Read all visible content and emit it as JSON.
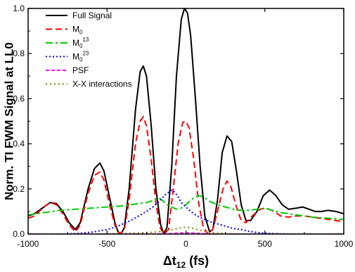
{
  "chart_data": {
    "type": "line",
    "xlabel_main": "Δt",
    "xlabel_sub": "12",
    "xlabel_unit": " (fs)",
    "ylabel": "Norm. TI FWM Signal at LL0",
    "xlim": [
      -1000,
      1000
    ],
    "ylim": [
      0,
      1.0
    ],
    "x_ticks": [
      -1000,
      -500,
      0,
      500,
      1000
    ],
    "x_tick_labels": [
      "-1000",
      "-500",
      "0",
      "500",
      "1000"
    ],
    "y_ticks": [
      0,
      0.2,
      0.4,
      0.6,
      0.8,
      1.0
    ],
    "y_tick_labels": [
      "0.0",
      "0.2",
      "0.4",
      "0.6",
      "0.8",
      "1.0"
    ],
    "legend_position": "top-left",
    "series": [
      {
        "name": "Full Signal",
        "legend": {
          "base": "Full Signal"
        },
        "color": "#000000",
        "dash": "",
        "width": 2,
        "points": [
          [
            -1000,
            0.08
          ],
          [
            -960,
            0.09
          ],
          [
            -900,
            0.12
          ],
          [
            -860,
            0.14
          ],
          [
            -820,
            0.135
          ],
          [
            -780,
            0.1
          ],
          [
            -740,
            0.05
          ],
          [
            -700,
            0.02
          ],
          [
            -670,
            0.05
          ],
          [
            -620,
            0.2
          ],
          [
            -580,
            0.29
          ],
          [
            -545,
            0.315
          ],
          [
            -520,
            0.28
          ],
          [
            -480,
            0.15
          ],
          [
            -450,
            0.05
          ],
          [
            -430,
            0.01
          ],
          [
            -410,
            0.0
          ],
          [
            -390,
            0.03
          ],
          [
            -360,
            0.2
          ],
          [
            -320,
            0.55
          ],
          [
            -290,
            0.72
          ],
          [
            -270,
            0.745
          ],
          [
            -250,
            0.7
          ],
          [
            -220,
            0.48
          ],
          [
            -190,
            0.2
          ],
          [
            -160,
            0.04
          ],
          [
            -140,
            0.0
          ],
          [
            -120,
            0.03
          ],
          [
            -90,
            0.3
          ],
          [
            -60,
            0.7
          ],
          [
            -30,
            0.95
          ],
          [
            -10,
            1.0
          ],
          [
            10,
            0.98
          ],
          [
            30,
            0.88
          ],
          [
            60,
            0.6
          ],
          [
            90,
            0.3
          ],
          [
            120,
            0.08
          ],
          [
            150,
            0.01
          ],
          [
            170,
            0.02
          ],
          [
            200,
            0.15
          ],
          [
            230,
            0.36
          ],
          [
            260,
            0.435
          ],
          [
            290,
            0.41
          ],
          [
            320,
            0.28
          ],
          [
            350,
            0.13
          ],
          [
            380,
            0.06
          ],
          [
            410,
            0.06
          ],
          [
            450,
            0.1
          ],
          [
            490,
            0.17
          ],
          [
            530,
            0.195
          ],
          [
            570,
            0.17
          ],
          [
            610,
            0.13
          ],
          [
            650,
            0.11
          ],
          [
            700,
            0.115
          ],
          [
            740,
            0.12
          ],
          [
            780,
            0.11
          ],
          [
            820,
            0.1
          ],
          [
            860,
            0.1
          ],
          [
            900,
            0.105
          ],
          [
            950,
            0.1
          ],
          [
            1000,
            0.09
          ]
        ]
      },
      {
        "name": "M0",
        "legend": {
          "base": "M",
          "sub": "0"
        },
        "color": "#ff0000",
        "dash": "9,5",
        "width": 2,
        "points": [
          [
            -1000,
            0.07
          ],
          [
            -960,
            0.08
          ],
          [
            -900,
            0.12
          ],
          [
            -860,
            0.14
          ],
          [
            -820,
            0.13
          ],
          [
            -780,
            0.09
          ],
          [
            -740,
            0.04
          ],
          [
            -700,
            0.01
          ],
          [
            -670,
            0.04
          ],
          [
            -620,
            0.18
          ],
          [
            -580,
            0.26
          ],
          [
            -545,
            0.275
          ],
          [
            -520,
            0.24
          ],
          [
            -480,
            0.12
          ],
          [
            -450,
            0.04
          ],
          [
            -420,
            0.0
          ],
          [
            -390,
            0.02
          ],
          [
            -360,
            0.15
          ],
          [
            -320,
            0.4
          ],
          [
            -290,
            0.5
          ],
          [
            -270,
            0.52
          ],
          [
            -250,
            0.48
          ],
          [
            -220,
            0.33
          ],
          [
            -190,
            0.14
          ],
          [
            -165,
            0.03
          ],
          [
            -140,
            0.0
          ],
          [
            -110,
            0.02
          ],
          [
            -80,
            0.2
          ],
          [
            -50,
            0.4
          ],
          [
            -20,
            0.495
          ],
          [
            0,
            0.5
          ],
          [
            20,
            0.47
          ],
          [
            50,
            0.33
          ],
          [
            80,
            0.14
          ],
          [
            110,
            0.03
          ],
          [
            140,
            0.0
          ],
          [
            170,
            0.02
          ],
          [
            200,
            0.1
          ],
          [
            235,
            0.2
          ],
          [
            260,
            0.235
          ],
          [
            285,
            0.21
          ],
          [
            320,
            0.12
          ],
          [
            350,
            0.06
          ],
          [
            380,
            0.05
          ],
          [
            420,
            0.08
          ],
          [
            470,
            0.11
          ],
          [
            510,
            0.115
          ],
          [
            560,
            0.1
          ],
          [
            600,
            0.08
          ],
          [
            650,
            0.075
          ],
          [
            700,
            0.08
          ],
          [
            750,
            0.08
          ],
          [
            800,
            0.075
          ],
          [
            850,
            0.07
          ],
          [
            900,
            0.065
          ],
          [
            950,
            0.06
          ],
          [
            1000,
            0.055
          ]
        ]
      },
      {
        "name": "M0 13",
        "legend": {
          "base": "M",
          "sub": "0",
          "sup": "13"
        },
        "color": "#00cc00",
        "dash": "10,4,3,4",
        "width": 2,
        "points": [
          [
            -1000,
            0.085
          ],
          [
            -900,
            0.095
          ],
          [
            -800,
            0.105
          ],
          [
            -700,
            0.11
          ],
          [
            -600,
            0.115
          ],
          [
            -500,
            0.12
          ],
          [
            -400,
            0.125
          ],
          [
            -300,
            0.135
          ],
          [
            -250,
            0.14
          ],
          [
            -200,
            0.15
          ],
          [
            -170,
            0.16
          ],
          [
            -150,
            0.15
          ],
          [
            -120,
            0.13
          ],
          [
            -90,
            0.12
          ],
          [
            -60,
            0.11
          ],
          [
            -30,
            0.115
          ],
          [
            0,
            0.13
          ],
          [
            30,
            0.15
          ],
          [
            60,
            0.165
          ],
          [
            90,
            0.17
          ],
          [
            120,
            0.16
          ],
          [
            150,
            0.145
          ],
          [
            200,
            0.13
          ],
          [
            250,
            0.12
          ],
          [
            300,
            0.11
          ],
          [
            350,
            0.105
          ],
          [
            400,
            0.105
          ],
          [
            450,
            0.11
          ],
          [
            500,
            0.115
          ],
          [
            550,
            0.105
          ],
          [
            600,
            0.095
          ],
          [
            700,
            0.085
          ],
          [
            800,
            0.075
          ],
          [
            900,
            0.07
          ],
          [
            1000,
            0.065
          ]
        ]
      },
      {
        "name": "M0 23",
        "legend": {
          "base": "M",
          "sub": "0",
          "sup": "23"
        },
        "color": "#0000ff",
        "dash": "2,3",
        "width": 2,
        "points": [
          [
            -1000,
            0.0
          ],
          [
            -900,
            0.0
          ],
          [
            -800,
            0.0
          ],
          [
            -700,
            0.002
          ],
          [
            -600,
            0.008
          ],
          [
            -500,
            0.02
          ],
          [
            -450,
            0.03
          ],
          [
            -400,
            0.045
          ],
          [
            -350,
            0.06
          ],
          [
            -300,
            0.08
          ],
          [
            -250,
            0.1
          ],
          [
            -200,
            0.125
          ],
          [
            -170,
            0.145
          ],
          [
            -150,
            0.16
          ],
          [
            -130,
            0.175
          ],
          [
            -110,
            0.185
          ],
          [
            -90,
            0.195
          ],
          [
            -70,
            0.185
          ],
          [
            -50,
            0.165
          ],
          [
            -30,
            0.14
          ],
          [
            0,
            0.12
          ],
          [
            30,
            0.1
          ],
          [
            60,
            0.085
          ],
          [
            100,
            0.07
          ],
          [
            150,
            0.055
          ],
          [
            200,
            0.045
          ],
          [
            250,
            0.035
          ],
          [
            300,
            0.025
          ],
          [
            350,
            0.02
          ],
          [
            400,
            0.012
          ],
          [
            450,
            0.007
          ],
          [
            500,
            0.004
          ],
          [
            600,
            0.001
          ],
          [
            700,
            0.0
          ],
          [
            800,
            0.0
          ],
          [
            1000,
            0.0
          ]
        ]
      },
      {
        "name": "PSF",
        "legend": {
          "base": "PSF"
        },
        "color": "#ff00ff",
        "dash": "5,3",
        "width": 2,
        "points": [
          [
            -1000,
            0.0
          ],
          [
            -500,
            0.0
          ],
          [
            -200,
            0.0
          ],
          [
            -100,
            0.002
          ],
          [
            -50,
            0.004
          ],
          [
            0,
            0.005
          ],
          [
            50,
            0.004
          ],
          [
            100,
            0.002
          ],
          [
            200,
            0.0
          ],
          [
            500,
            0.0
          ],
          [
            1000,
            0.0
          ]
        ]
      },
      {
        "name": "X-X interactions",
        "legend": {
          "base": "X-X interactions"
        },
        "color": "#808000",
        "dash": "2,4",
        "width": 2,
        "points": [
          [
            -1000,
            0.0
          ],
          [
            -600,
            0.0
          ],
          [
            -400,
            0.002
          ],
          [
            -300,
            0.005
          ],
          [
            -200,
            0.008
          ],
          [
            -150,
            0.012
          ],
          [
            -100,
            0.018
          ],
          [
            -60,
            0.024
          ],
          [
            -30,
            0.028
          ],
          [
            0,
            0.03
          ],
          [
            30,
            0.028
          ],
          [
            60,
            0.022
          ],
          [
            100,
            0.015
          ],
          [
            150,
            0.008
          ],
          [
            200,
            0.004
          ],
          [
            300,
            0.001
          ],
          [
            500,
            0.0
          ],
          [
            1000,
            0.0
          ]
        ]
      }
    ]
  }
}
